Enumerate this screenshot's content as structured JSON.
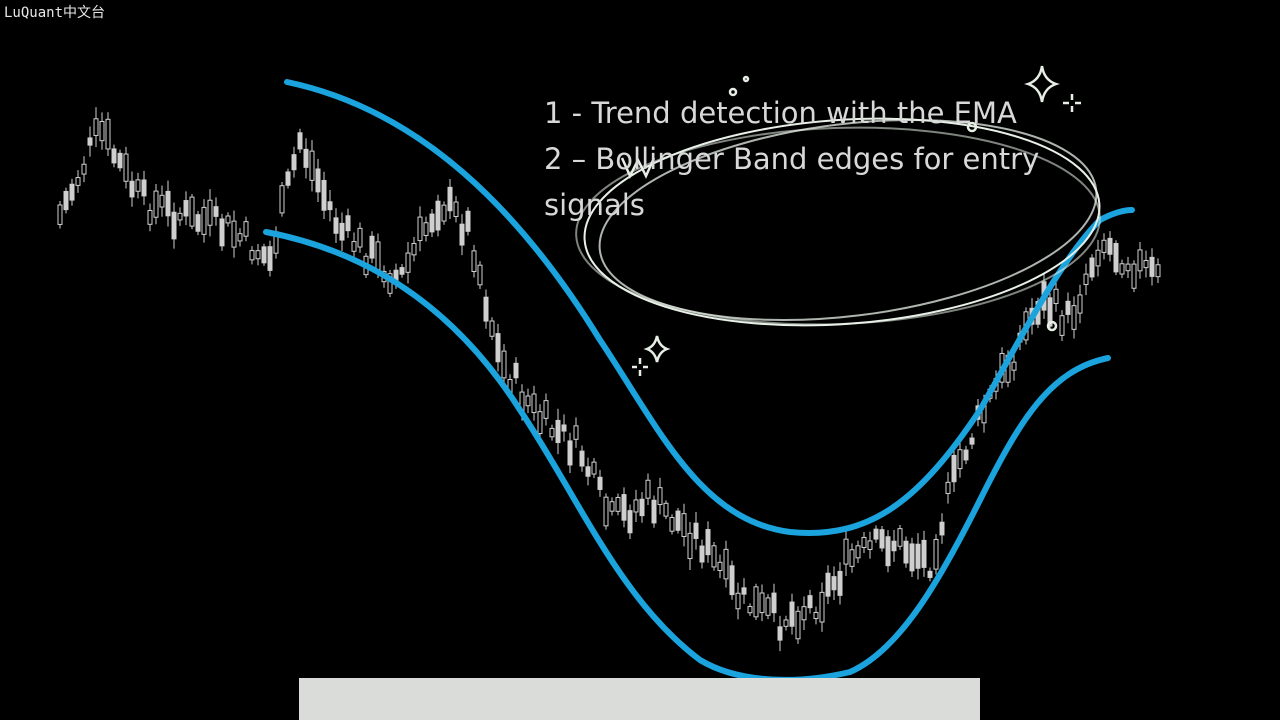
{
  "watermark": "LuQuant中文台",
  "bullets": [
    "1 - Trend detection with the EMA",
    "2 – Bollinger Band edges for entry",
    "signals"
  ],
  "colors": {
    "background": "#000000",
    "candles": "#cfcfcf",
    "band_lines": "#1aa3dc",
    "annotation_sketch": "#e6eee6",
    "text": "#d8d8d8",
    "subtitle_bar": "#d9dcd9"
  },
  "icons": [
    "sparkle-icon",
    "sparkle-icon",
    "sparkle-icon",
    "doodle-ring"
  ]
}
